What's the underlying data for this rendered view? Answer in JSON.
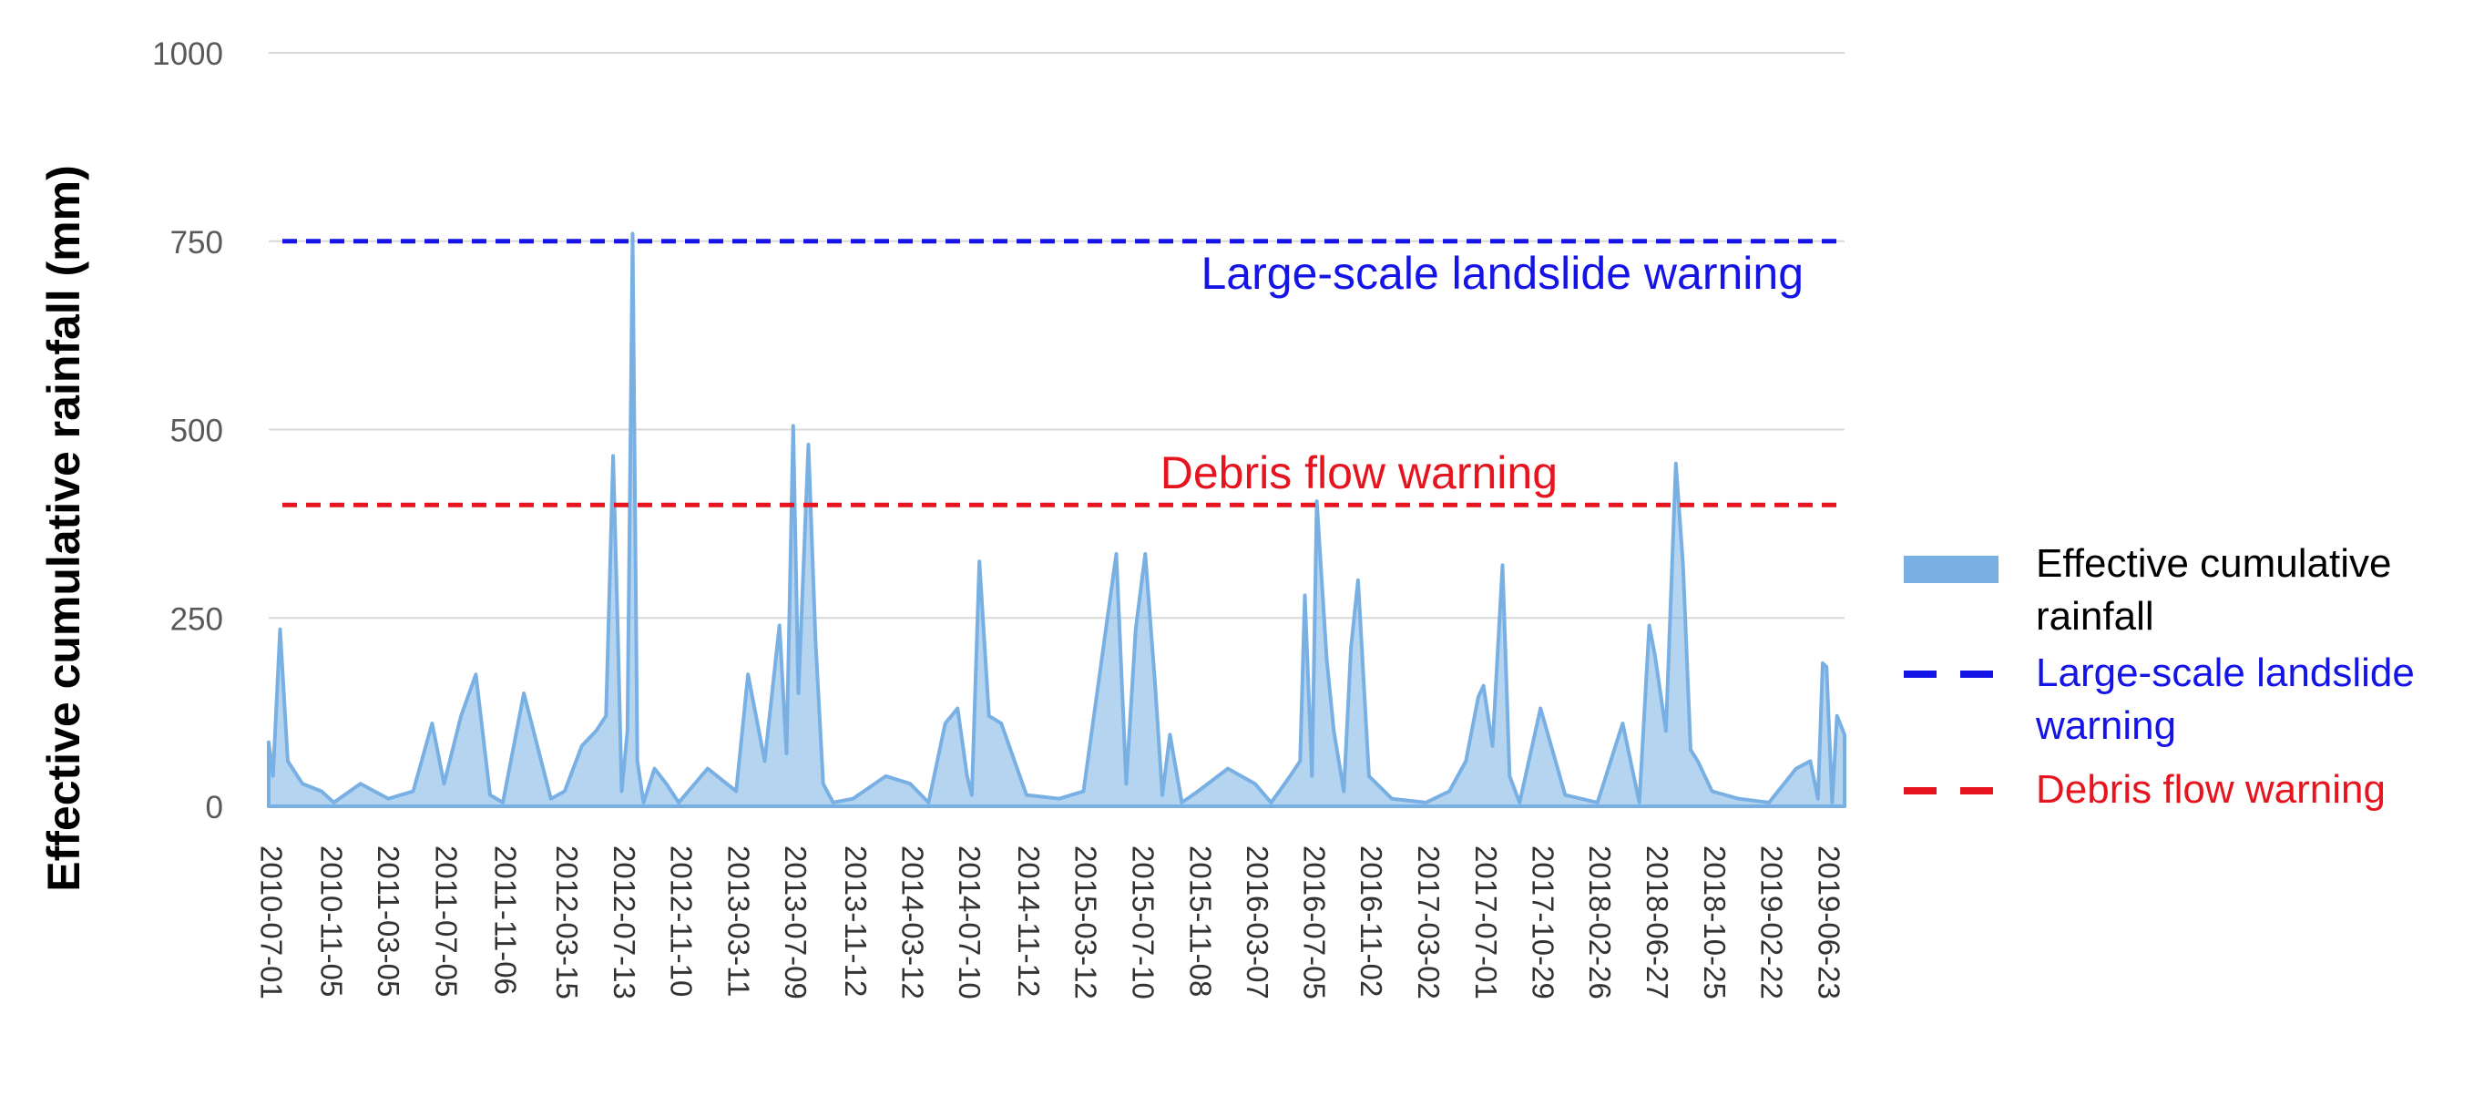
{
  "chart_data": {
    "type": "area",
    "title": "",
    "ylabel": "Effective cumulative rainfall (mm)",
    "xlabel": "",
    "ylim": [
      0,
      1000
    ],
    "yticks": [
      0,
      250,
      500,
      750,
      1000
    ],
    "grid": true,
    "x_tick_labels": [
      "2010-07-01",
      "2010-11-05",
      "2011-03-05",
      "2011-07-05",
      "2011-11-06",
      "2012-03-15",
      "2012-07-13",
      "2012-11-10",
      "2013-03-11",
      "2013-07-09",
      "2013-11-12",
      "2014-03-12",
      "2014-07-10",
      "2014-11-12",
      "2015-03-12",
      "2015-07-10",
      "2015-11-08",
      "2016-03-07",
      "2016-07-05",
      "2016-11-02",
      "2017-03-02",
      "2017-07-01",
      "2017-10-29",
      "2018-02-26",
      "2018-06-27",
      "2018-10-25",
      "2019-02-22",
      "2019-06-23"
    ],
    "series": [
      {
        "name": "Effective cumulative rainfall",
        "color": "#79b0e4",
        "x": [
          "2010-07-01",
          "2010-07-10",
          "2010-07-25",
          "2010-08-10",
          "2010-09-10",
          "2010-10-20",
          "2010-11-15",
          "2011-01-10",
          "2011-03-10",
          "2011-05-01",
          "2011-06-10",
          "2011-07-05",
          "2011-08-10",
          "2011-09-10",
          "2011-10-10",
          "2011-11-06",
          "2011-12-20",
          "2012-02-15",
          "2012-03-15",
          "2012-04-20",
          "2012-05-20",
          "2012-06-10",
          "2012-06-25",
          "2012-07-05",
          "2012-07-13",
          "2012-07-25",
          "2012-08-05",
          "2012-08-15",
          "2012-08-28",
          "2012-09-20",
          "2012-10-15",
          "2012-11-10",
          "2013-01-10",
          "2013-03-11",
          "2013-04-05",
          "2013-05-10",
          "2013-06-10",
          "2013-06-25",
          "2013-07-09",
          "2013-07-20",
          "2013-08-10",
          "2013-08-25",
          "2013-09-10",
          "2013-10-01",
          "2013-11-12",
          "2014-01-20",
          "2014-03-12",
          "2014-04-20",
          "2014-05-25",
          "2014-06-20",
          "2014-07-10",
          "2014-07-20",
          "2014-08-05",
          "2014-08-25",
          "2014-09-20",
          "2014-11-12",
          "2015-01-20",
          "2015-03-12",
          "2015-05-20",
          "2015-06-10",
          "2015-06-30",
          "2015-07-20",
          "2015-08-10",
          "2015-08-25",
          "2015-09-10",
          "2015-10-05",
          "2015-11-08",
          "2016-01-10",
          "2016-03-07",
          "2016-04-10",
          "2016-05-20",
          "2016-06-10",
          "2016-06-20",
          "2016-07-05",
          "2016-07-15",
          "2016-08-05",
          "2016-08-20",
          "2016-09-10",
          "2016-09-25",
          "2016-10-10",
          "2016-11-02",
          "2016-12-20",
          "2017-03-02",
          "2017-04-20",
          "2017-05-25",
          "2017-06-20",
          "2017-07-01",
          "2017-07-20",
          "2017-08-10",
          "2017-08-25",
          "2017-09-15",
          "2017-10-29",
          "2017-12-20",
          "2018-02-26",
          "2018-04-20",
          "2018-05-25",
          "2018-06-15",
          "2018-06-27",
          "2018-07-20",
          "2018-08-10",
          "2018-08-25",
          "2018-09-10",
          "2018-09-25",
          "2018-10-25",
          "2018-12-20",
          "2019-02-22",
          "2019-04-20",
          "2019-05-20",
          "2019-06-05",
          "2019-06-15",
          "2019-06-23",
          "2019-07-05",
          "2019-07-15",
          "2019-07-31"
        ],
        "y": [
          85,
          40,
          235,
          60,
          30,
          20,
          5,
          30,
          10,
          20,
          110,
          30,
          120,
          175,
          15,
          5,
          150,
          10,
          20,
          80,
          100,
          120,
          465,
          230,
          20,
          100,
          760,
          60,
          5,
          50,
          30,
          5,
          50,
          20,
          175,
          60,
          240,
          70,
          505,
          150,
          480,
          220,
          30,
          5,
          10,
          40,
          30,
          5,
          110,
          130,
          40,
          15,
          325,
          120,
          110,
          15,
          10,
          20,
          335,
          30,
          235,
          335,
          160,
          15,
          95,
          5,
          20,
          50,
          30,
          5,
          40,
          60,
          280,
          40,
          405,
          195,
          100,
          20,
          210,
          300,
          40,
          10,
          5,
          20,
          60,
          145,
          160,
          80,
          320,
          40,
          5,
          130,
          15,
          5,
          110,
          5,
          240,
          200,
          100,
          455,
          320,
          75,
          60,
          20,
          10,
          5,
          50,
          60,
          10,
          190,
          185,
          5,
          120,
          95
        ]
      }
    ],
    "reference_lines": [
      {
        "name": "Large-scale landslide warning",
        "y": 750,
        "color": "#1414e6",
        "label": "Large-scale landslide warning"
      },
      {
        "name": "Debris flow warning",
        "y": 400,
        "color": "#e6141e",
        "label": "Debris flow warning"
      }
    ],
    "legend": {
      "position": "right",
      "items": [
        {
          "label": "Effective cumulative rainfall",
          "color": "#79b0e4",
          "text_color": "#000000",
          "style": "area"
        },
        {
          "label": "Large-scale landslide warning",
          "color": "#1414e6",
          "text_color": "#1414e6",
          "style": "dash"
        },
        {
          "label": "Debris flow warning",
          "color": "#e6141e",
          "text_color": "#e6141e",
          "style": "dash"
        }
      ]
    }
  }
}
